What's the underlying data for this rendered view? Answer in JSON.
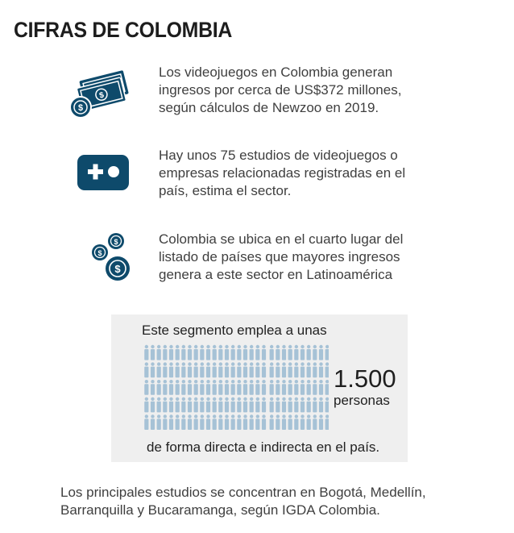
{
  "title": "CIFRAS DE COLOMBIA",
  "colors": {
    "icon": "#0e4a6b",
    "person": "#a6c2d6",
    "box": "#efefef"
  },
  "facts": [
    {
      "icon": "money-bills-icon",
      "lines": [
        "Los videojuegos en Colombia generan",
        "ingresos por cerca de US$372 millones,",
        "según cálculos de Newzoo en 2019."
      ]
    },
    {
      "icon": "gamepad-icon",
      "lines": [
        "Hay unos 75 estudios de videojuegos o",
        "empresas relacionadas registradas en el",
        "país, estima el sector."
      ]
    },
    {
      "icon": "coins-icon",
      "lines": [
        "Colombia se ubica en el cuarto lugar del",
        "listado de países que mayores ingresos",
        "genera a este sector en Latinoamérica"
      ]
    }
  ],
  "employment": {
    "intro": "Este segmento emplea a unas",
    "number": "1.500",
    "unit": "personas",
    "outro": "de forma directa e indirecta en el país."
  },
  "footer": {
    "lines": [
      "Los principales estudios se concentran en Bogotá, Medellín,",
      "Barranquilla y Bucaramanga, según IGDA Colombia."
    ]
  }
}
